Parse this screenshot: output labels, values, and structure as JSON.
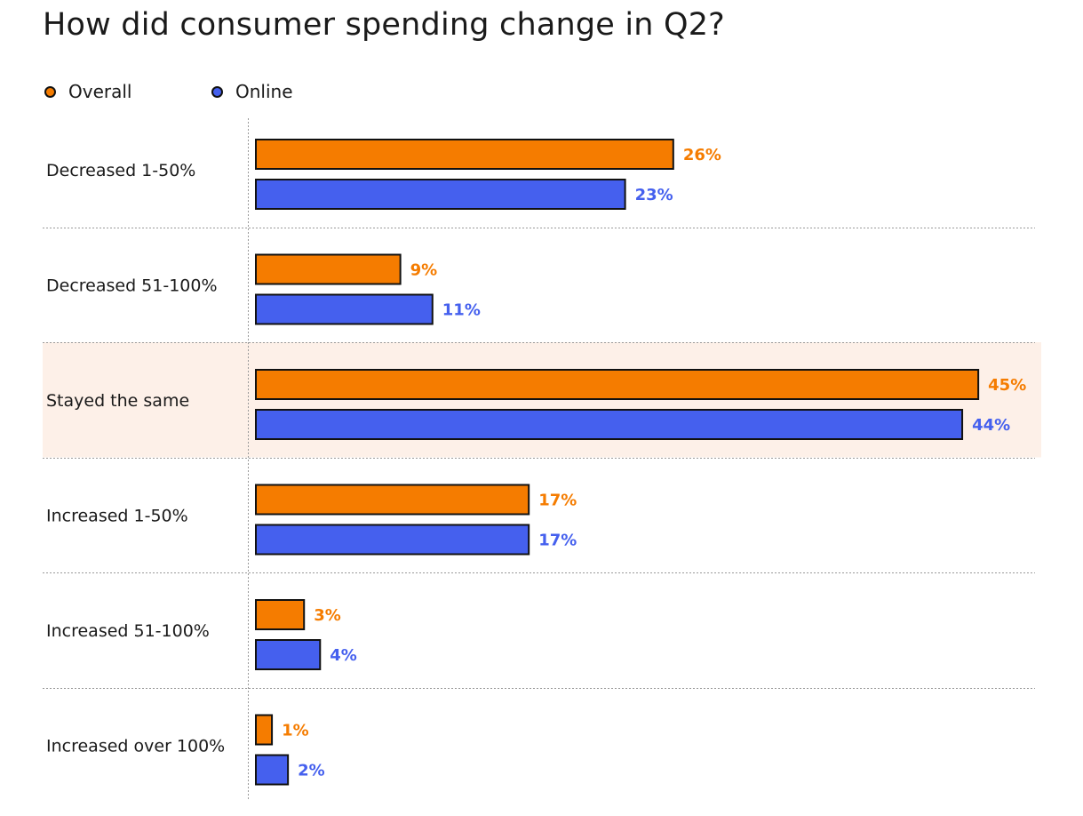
{
  "chart_data": {
    "type": "bar",
    "orientation": "horizontal",
    "title": "How did consumer spending change in Q2?",
    "categories": [
      "Decreased 1-50%",
      "Decreased 51-100%",
      "Stayed the same",
      "Increased 1-50%",
      "Increased 51-100%",
      "Increased over 100%"
    ],
    "series": [
      {
        "name": "Overall",
        "color": "#F57C00",
        "values": [
          26,
          9,
          45,
          17,
          3,
          1
        ],
        "labels": [
          "26%",
          "9%",
          "45%",
          "17%",
          "3%",
          "1%"
        ]
      },
      {
        "name": "Online",
        "color": "#4560EE",
        "values": [
          23,
          11,
          44,
          17,
          4,
          2
        ],
        "labels": [
          "23%",
          "11%",
          "44%",
          "17%",
          "4%",
          "2%"
        ]
      }
    ],
    "highlighted_category": "Stayed the same",
    "highlight_color": "#FDF0E8",
    "value_unit": "%",
    "legend_position": "top-left",
    "grid": false
  }
}
